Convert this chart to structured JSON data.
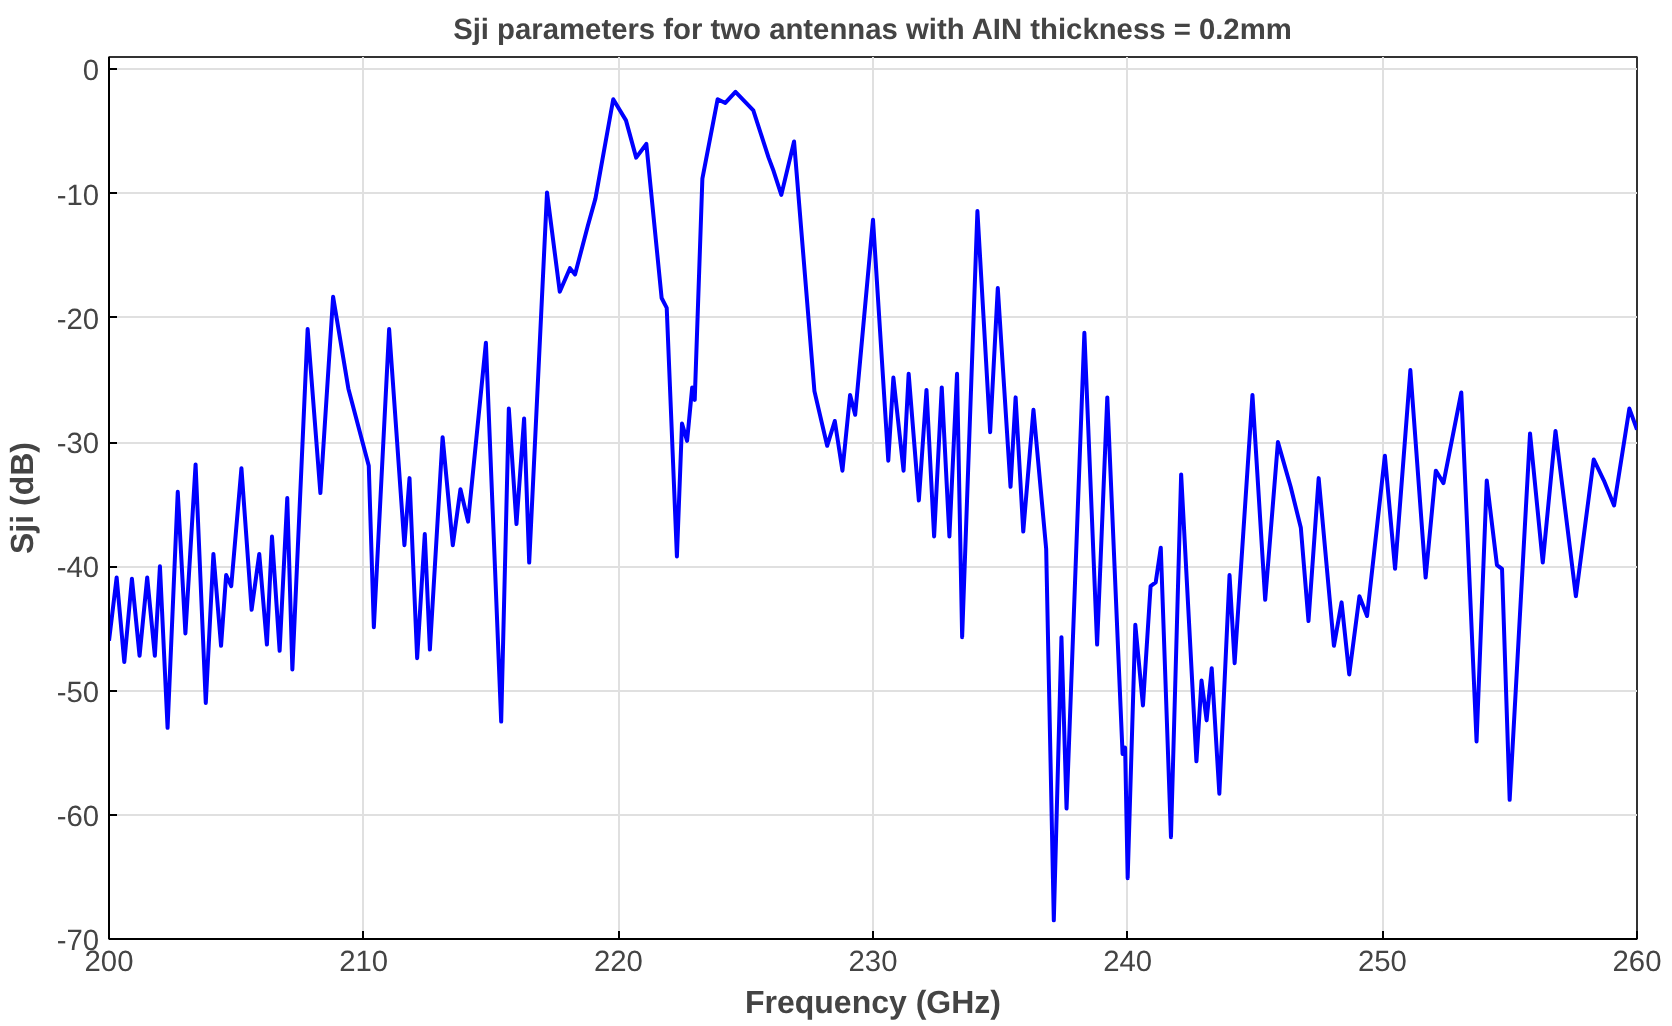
{
  "chart_data": {
    "type": "line",
    "title": "Sji parameters for two antennas with AIN thickness = 0.2mm",
    "xlabel": "Frequency (GHz)",
    "ylabel": "Sji (dB)",
    "xlim": [
      200,
      260
    ],
    "ylim": [
      -70,
      1
    ],
    "xticks": [
      200,
      210,
      220,
      230,
      240,
      250,
      260
    ],
    "yticks": [
      -70,
      -60,
      -50,
      -40,
      -30,
      -20,
      -10,
      0
    ],
    "grid": true,
    "line_style": "solid",
    "series": [
      {
        "color": "#0000ff",
        "x": [
          200.0,
          200.3,
          200.6,
          200.9,
          201.2,
          201.5,
          201.8,
          202.0,
          202.3,
          202.7,
          203.0,
          203.4,
          203.8,
          204.1,
          204.4,
          204.6,
          204.8,
          205.2,
          205.6,
          205.9,
          206.2,
          206.4,
          206.7,
          207.0,
          207.2,
          207.8,
          208.3,
          208.8,
          209.4,
          210.2,
          210.4,
          211.0,
          211.6,
          211.8,
          212.1,
          212.4,
          212.6,
          213.1,
          213.5,
          213.8,
          214.1,
          214.8,
          215.4,
          215.7,
          216.0,
          216.3,
          216.5,
          217.2,
          217.7,
          218.1,
          218.3,
          218.8,
          219.1,
          219.8,
          220.3,
          220.7,
          221.1,
          221.7,
          221.9,
          222.3,
          222.5,
          222.7,
          222.9,
          223.0,
          223.3,
          223.9,
          224.2,
          224.6,
          225.3,
          225.9,
          226.1,
          226.4,
          226.9,
          227.7,
          228.2,
          228.5,
          228.8,
          229.1,
          229.3,
          230.0,
          230.6,
          230.8,
          231.2,
          231.4,
          231.8,
          232.1,
          232.4,
          232.7,
          233.0,
          233.3,
          233.5,
          234.1,
          234.6,
          234.9,
          235.4,
          235.6,
          235.9,
          236.3,
          236.8,
          237.1,
          237.4,
          237.6,
          238.3,
          238.8,
          239.2,
          239.8,
          239.9,
          240.0,
          240.3,
          240.6,
          240.9,
          241.1,
          241.3,
          241.7,
          242.1,
          242.7,
          242.9,
          243.1,
          243.3,
          243.6,
          244.0,
          244.2,
          244.9,
          245.4,
          245.9,
          246.4,
          246.8,
          247.1,
          247.5,
          248.1,
          248.4,
          248.7,
          249.1,
          249.4,
          250.1,
          250.5,
          251.1,
          251.7,
          252.1,
          252.4,
          253.1,
          253.7,
          254.1,
          254.5,
          254.7,
          255.0,
          255.8,
          256.3,
          256.8,
          257.6,
          258.3,
          258.7,
          259.1,
          259.7,
          260.0
        ],
        "values": [
          -46,
          -40.9,
          -47.7,
          -41,
          -47.2,
          -40.9,
          -47.2,
          -40,
          -53,
          -34,
          -45.4,
          -31.8,
          -51,
          -39,
          -46.4,
          -40.7,
          -41.6,
          -32.1,
          -43.5,
          -39,
          -46.3,
          -37.6,
          -46.8,
          -34.5,
          -48.3,
          -20.9,
          -34.1,
          -18.3,
          -25.7,
          -31.9,
          -44.9,
          -20.9,
          -38.3,
          -32.9,
          -47.4,
          -37.4,
          -46.7,
          -29.6,
          -38.3,
          -33.8,
          -36.4,
          -22,
          -52.5,
          -27.3,
          -36.6,
          -28.1,
          -39.7,
          -9.9,
          -17.9,
          -16,
          -16.5,
          -12.6,
          -10.4,
          -2.4,
          -4.1,
          -7.1,
          -6,
          -18.4,
          -19.2,
          -39.2,
          -28.5,
          -29.9,
          -25.6,
          -26.6,
          -8.8,
          -2.4,
          -2.7,
          -1.8,
          -3.3,
          -7.1,
          -8.2,
          -10.1,
          -5.8,
          -25.9,
          -30.3,
          -28.3,
          -32.3,
          -26.2,
          -27.8,
          -12.1,
          -31.5,
          -24.8,
          -32.3,
          -24.5,
          -34.7,
          -25.8,
          -37.6,
          -25.6,
          -37.6,
          -24.5,
          -45.7,
          -11.4,
          -29.2,
          -17.6,
          -33.6,
          -26.4,
          -37.2,
          -27.4,
          -38.6,
          -68.5,
          -45.7,
          -59.5,
          -21.2,
          -46.3,
          -26.4,
          -55.1,
          -54.6,
          -65.1,
          -44.7,
          -51.2,
          -41.6,
          -41.3,
          -38.5,
          -61.8,
          -32.6,
          -55.7,
          -49.2,
          -52.4,
          -48.2,
          -58.3,
          -40.7,
          -47.8,
          -26.2,
          -42.7,
          -30,
          -33.6,
          -36.9,
          -44.4,
          -32.9,
          -46.4,
          -42.9,
          -48.7,
          -42.4,
          -44,
          -31.1,
          -40.2,
          -24.2,
          -40.9,
          -32.3,
          -33.3,
          -26,
          -54.1,
          -33.1,
          -39.9,
          -40.2,
          -58.8,
          -29.3,
          -39.7,
          -29.1,
          -42.4,
          -31.4,
          -33.1,
          -35.1,
          -27.3,
          -29
        ]
      }
    ]
  }
}
